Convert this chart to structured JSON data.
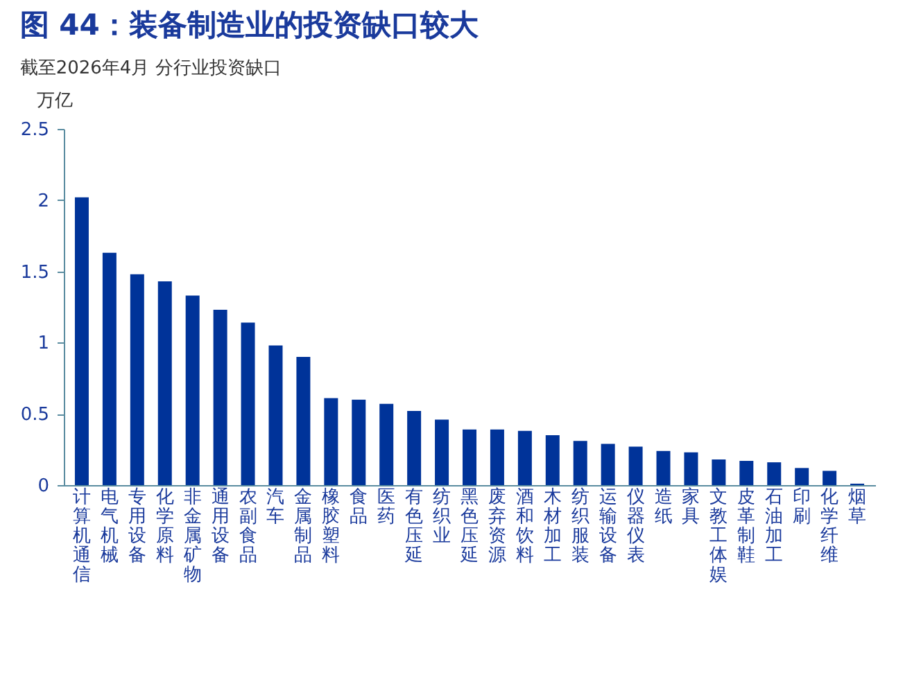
{
  "chart_data": {
    "type": "bar",
    "title": "图 44：装备制造业的投资缺口较大",
    "subtitle": "截至2026年4月 分行业投资缺口",
    "ylabel": "万亿",
    "categories": [
      "计算机通信",
      "电气机械",
      "专用设备",
      "化学原料",
      "非金属矿物",
      "通用设备",
      "农副食品",
      "汽车",
      "金属制品",
      "橡胶塑料",
      "食品",
      "医药",
      "有色压延",
      "纺织业",
      "黑色压延",
      "废弃资源",
      "酒和饮料",
      "木材加工",
      "纺织服装",
      "运输设备",
      "仪器仪表",
      "造纸",
      "家具",
      "文教工体娱",
      "皮革制鞋",
      "石油加工",
      "印刷",
      "化学纤维",
      "烟草"
    ],
    "values": [
      2.02,
      1.63,
      1.48,
      1.43,
      1.33,
      1.23,
      1.14,
      0.98,
      0.9,
      0.61,
      0.6,
      0.57,
      0.52,
      0.46,
      0.39,
      0.39,
      0.38,
      0.35,
      0.31,
      0.29,
      0.27,
      0.24,
      0.23,
      0.18,
      0.17,
      0.16,
      0.12,
      0.1,
      0.01
    ],
    "color": "#003399",
    "ylim": [
      0,
      2.5
    ],
    "yticks": [
      0,
      0.5,
      1,
      1.5,
      2,
      2.5
    ],
    "grid": false
  }
}
